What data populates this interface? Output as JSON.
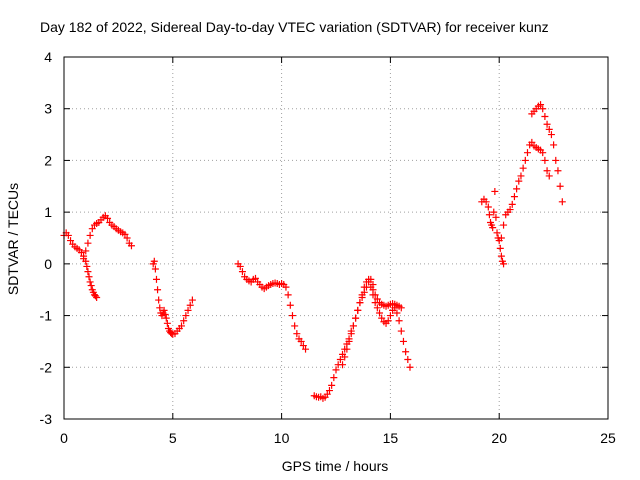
{
  "chart_data": {
    "type": "scatter",
    "title": "Day 182 of 2022, Sidereal Day-to-day VTEC variation (SDTVAR) for receiver kunz",
    "xlabel": "GPS time / hours",
    "ylabel": "SDTVAR / TECUs",
    "xlim": [
      0,
      25
    ],
    "ylim": [
      -3,
      4
    ],
    "xticks": [
      0,
      5,
      10,
      15,
      20,
      25
    ],
    "yticks": [
      -3,
      -2,
      -1,
      0,
      1,
      2,
      3,
      4
    ],
    "grid": true,
    "marker": "plus",
    "color": "#ff0000",
    "series": [
      {
        "x": [
          0.0,
          0.1,
          0.2,
          0.3,
          0.4,
          0.5,
          0.6,
          0.7,
          0.8,
          0.9,
          1.0,
          1.05,
          1.1,
          1.15,
          1.2,
          1.25,
          1.3,
          1.35,
          1.4,
          1.45,
          1.5
        ],
        "y": [
          0.55,
          0.6,
          0.55,
          0.45,
          0.38,
          0.33,
          0.3,
          0.27,
          0.22,
          0.15,
          0.05,
          -0.05,
          -0.15,
          -0.25,
          -0.35,
          -0.42,
          -0.5,
          -0.55,
          -0.6,
          -0.62,
          -0.65
        ]
      },
      {
        "x": [
          0.9,
          1.0,
          1.1,
          1.2,
          1.3,
          1.4,
          1.5,
          1.6,
          1.7,
          1.8,
          1.9,
          2.0,
          2.1,
          2.2,
          2.3,
          2.4,
          2.5,
          2.6,
          2.7,
          2.8,
          2.9,
          3.0,
          3.1
        ],
        "y": [
          0.1,
          0.25,
          0.4,
          0.55,
          0.68,
          0.75,
          0.78,
          0.8,
          0.85,
          0.9,
          0.93,
          0.88,
          0.8,
          0.75,
          0.72,
          0.68,
          0.65,
          0.62,
          0.6,
          0.57,
          0.5,
          0.4,
          0.35
        ]
      },
      {
        "x": [
          4.1,
          4.15,
          4.2,
          4.25,
          4.3,
          4.35,
          4.4,
          4.45,
          4.5,
          4.55,
          4.6,
          4.65,
          4.7,
          4.75,
          4.8,
          4.85,
          4.9,
          4.95,
          5.0,
          5.1,
          5.2,
          5.3,
          5.4,
          5.5,
          5.6,
          5.7,
          5.8,
          5.9
        ],
        "y": [
          0.0,
          0.05,
          -0.1,
          -0.3,
          -0.5,
          -0.7,
          -0.85,
          -0.95,
          -1.0,
          -0.95,
          -0.9,
          -0.98,
          -1.05,
          -1.15,
          -1.25,
          -1.3,
          -1.33,
          -1.35,
          -1.36,
          -1.35,
          -1.3,
          -1.25,
          -1.2,
          -1.1,
          -1.0,
          -0.9,
          -0.8,
          -0.7
        ]
      },
      {
        "x": [
          8.0,
          8.1,
          8.2,
          8.3,
          8.4,
          8.5,
          8.6,
          8.7,
          8.8,
          8.9,
          9.0,
          9.1,
          9.2,
          9.3,
          9.4,
          9.5,
          9.6,
          9.7,
          9.8,
          9.9,
          10.0,
          10.1,
          10.2,
          10.3,
          10.4,
          10.5,
          10.6,
          10.7,
          10.8,
          10.9,
          11.0,
          11.1
        ],
        "y": [
          0.0,
          -0.05,
          -0.15,
          -0.25,
          -0.3,
          -0.33,
          -0.35,
          -0.3,
          -0.28,
          -0.35,
          -0.4,
          -0.45,
          -0.48,
          -0.45,
          -0.42,
          -0.4,
          -0.38,
          -0.37,
          -0.38,
          -0.4,
          -0.38,
          -0.4,
          -0.45,
          -0.6,
          -0.8,
          -1.0,
          -1.2,
          -1.35,
          -1.45,
          -1.5,
          -1.58,
          -1.65
        ]
      },
      {
        "x": [
          11.5,
          11.6,
          11.7,
          11.8,
          11.9,
          12.0,
          12.1,
          12.2,
          12.3,
          12.4,
          12.5,
          12.6,
          12.7,
          12.8,
          12.9,
          13.0,
          13.1,
          13.2,
          13.3,
          13.4,
          13.5,
          13.6,
          13.7,
          13.8,
          13.9,
          14.0,
          14.1,
          14.2
        ],
        "y": [
          -2.55,
          -2.57,
          -2.58,
          -2.57,
          -2.6,
          -2.58,
          -2.52,
          -2.45,
          -2.35,
          -2.2,
          -2.05,
          -1.95,
          -1.85,
          -1.75,
          -1.65,
          -1.55,
          -1.45,
          -1.3,
          -1.2,
          -1.05,
          -0.9,
          -0.75,
          -0.65,
          -0.55,
          -0.45,
          -0.35,
          -0.3,
          -0.4
        ]
      },
      {
        "x": [
          12.8,
          12.9,
          13.0,
          13.1,
          13.2,
          13.3,
          13.4,
          13.5,
          13.6,
          13.7,
          13.8,
          13.9,
          14.0,
          14.1,
          14.2,
          14.3,
          14.4,
          14.5,
          14.6,
          14.7,
          14.8,
          14.9,
          15.0,
          15.1,
          15.2,
          15.3,
          15.4,
          15.5,
          15.6,
          15.7,
          15.8,
          15.9
        ],
        "y": [
          -1.95,
          -1.8,
          -1.65,
          -1.5,
          -1.35,
          -1.2,
          -1.05,
          -0.9,
          -0.75,
          -0.6,
          -0.45,
          -0.35,
          -0.3,
          -0.45,
          -0.6,
          -0.75,
          -0.85,
          -0.95,
          -1.05,
          -1.12,
          -1.15,
          -1.1,
          -1.0,
          -0.9,
          -0.85,
          -0.95,
          -1.1,
          -1.3,
          -1.5,
          -1.7,
          -1.85,
          -2.0
        ]
      },
      {
        "x": [
          14.2,
          14.3,
          14.4,
          14.5,
          14.6,
          14.7,
          14.8,
          14.9,
          15.0,
          15.1,
          15.2,
          15.3,
          15.4,
          15.5
        ],
        "y": [
          -0.5,
          -0.6,
          -0.68,
          -0.75,
          -0.78,
          -0.8,
          -0.82,
          -0.8,
          -0.78,
          -0.77,
          -0.78,
          -0.8,
          -0.82,
          -0.85
        ]
      },
      {
        "x": [
          19.2,
          19.3,
          19.4,
          19.5,
          19.55,
          19.6,
          19.65,
          19.7,
          19.75,
          19.8,
          19.85,
          19.9,
          19.95,
          20.0,
          20.05,
          20.1,
          20.15,
          20.2
        ],
        "y": [
          1.2,
          1.25,
          1.2,
          1.1,
          0.95,
          0.8,
          0.75,
          0.7,
          1.0,
          1.4,
          0.9,
          0.6,
          0.5,
          0.45,
          0.3,
          0.15,
          0.05,
          0.0
        ]
      },
      {
        "x": [
          20.1,
          20.2,
          20.3,
          20.4,
          20.5,
          20.6,
          20.7,
          20.8,
          20.9,
          21.0,
          21.1,
          21.2,
          21.3,
          21.4,
          21.5,
          21.6,
          21.7,
          21.8,
          21.9,
          22.0,
          22.1,
          22.2,
          22.3
        ],
        "y": [
          0.5,
          0.75,
          0.95,
          1.0,
          1.05,
          1.15,
          1.3,
          1.45,
          1.6,
          1.7,
          1.85,
          2.0,
          2.15,
          2.3,
          2.35,
          2.28,
          2.25,
          2.22,
          2.2,
          2.15,
          2.0,
          1.8,
          1.7
        ]
      },
      {
        "x": [
          21.5,
          21.6,
          21.7,
          21.8,
          21.9,
          22.0,
          22.1,
          22.2,
          22.3,
          22.4,
          22.5,
          22.6,
          22.7,
          22.8,
          22.9
        ],
        "y": [
          2.9,
          2.95,
          3.0,
          3.05,
          3.08,
          3.0,
          2.85,
          2.7,
          2.6,
          2.5,
          2.3,
          2.0,
          1.8,
          1.5,
          1.2
        ]
      }
    ]
  }
}
